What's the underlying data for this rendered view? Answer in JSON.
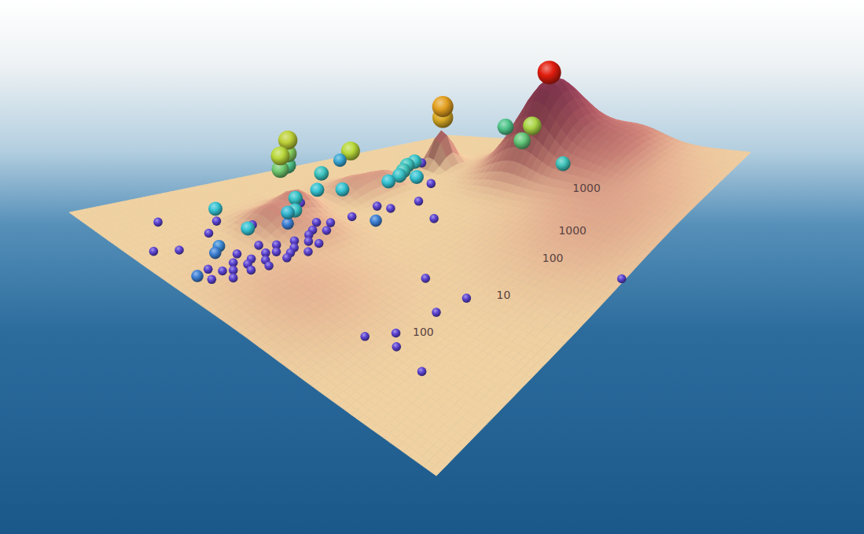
{
  "chart_data": {
    "type": "surface3d",
    "xlim": [
      0,
      100
    ],
    "ylim": [
      0,
      100
    ],
    "zlim": [
      0,
      120
    ],
    "clim": [
      0,
      100
    ],
    "tick_labels": false,
    "grid": false,
    "surface": {
      "peaks": [
        {
          "x": 90,
          "y": 45,
          "height": 100,
          "spread": 7
        },
        {
          "x": 93,
          "y": 62,
          "height": 35,
          "spread": 9
        },
        {
          "x": 80,
          "y": 22,
          "height": 45,
          "spread": 2.2
        },
        {
          "x": 33,
          "y": 22,
          "height": 22,
          "spread": 4
        },
        {
          "x": 42,
          "y": 20,
          "height": 25,
          "spread": 3.5
        },
        {
          "x": 58,
          "y": 20,
          "height": 18,
          "spread": 4
        },
        {
          "x": 65,
          "y": 22,
          "height": 15,
          "spread": 3
        },
        {
          "x": 38,
          "y": 30,
          "height": 12,
          "spread": 5
        },
        {
          "x": 20,
          "y": 45,
          "height": 10,
          "spread": 12
        },
        {
          "x": 75,
          "y": 80,
          "height": 15,
          "spread": 15
        }
      ]
    },
    "contour_labels": [
      {
        "value": 1000,
        "x": 78,
        "y": 70
      },
      {
        "value": 1000,
        "x": 66,
        "y": 78
      },
      {
        "value": 100,
        "x": 58,
        "y": 80
      },
      {
        "value": 10,
        "x": 45,
        "y": 78
      },
      {
        "value": 100,
        "x": 27,
        "y": 72
      }
    ],
    "points": {
      "x": [
        30,
        30,
        34,
        34,
        34,
        34,
        34,
        55,
        53,
        82,
        82,
        90,
        82,
        86,
        84,
        85,
        60,
        63,
        65,
        67,
        69,
        66,
        15,
        22,
        14,
        12,
        5,
        38,
        44,
        47,
        50,
        36,
        50,
        10,
        12,
        14,
        16,
        18,
        20,
        22,
        24,
        26,
        28,
        30,
        32,
        34,
        36,
        38,
        40,
        12,
        17,
        21,
        26,
        31,
        35,
        8,
        28,
        19,
        25,
        41,
        43,
        14,
        10,
        20,
        5,
        25,
        30,
        45,
        48,
        55,
        56,
        18,
        23,
        20,
        18,
        33,
        40,
        40,
        60,
        58,
        78,
        62,
        70
      ],
      "y": [
        28,
        28,
        26,
        26,
        26,
        26,
        26,
        22,
        21,
        20,
        20,
        45,
        40,
        44,
        43,
        55,
        28,
        28,
        27,
        26,
        26,
        30,
        25,
        27,
        27,
        28,
        30,
        24,
        24,
        22,
        25,
        26,
        35,
        28,
        30,
        31,
        29,
        31,
        30,
        32,
        30,
        31,
        33,
        32,
        30,
        32,
        30,
        29,
        31,
        33,
        33,
        34,
        34,
        35,
        34,
        31,
        29,
        27,
        27,
        27,
        29,
        10,
        20,
        18,
        18,
        15,
        20,
        18,
        30,
        30,
        33,
        64,
        68,
        71,
        80,
        70,
        72,
        60,
        99,
        44,
        18,
        35,
        30
      ],
      "z": [
        110,
        93,
        118,
        101,
        86,
        26,
        12,
        60,
        50,
        70,
        56,
        114,
        60,
        55,
        40,
        17,
        22,
        24,
        25,
        27,
        28,
        19,
        62,
        30,
        22,
        20,
        10,
        33,
        33,
        45,
        25,
        25,
        3,
        3,
        3,
        3,
        3,
        3,
        3,
        3,
        3,
        3,
        3,
        3,
        3,
        3,
        3,
        3,
        3,
        3,
        3,
        3,
        3,
        3,
        3,
        3,
        3,
        3,
        3,
        3,
        3,
        3,
        3,
        3,
        3,
        3,
        3,
        3,
        3,
        3,
        3,
        3,
        3,
        3,
        3,
        3,
        3,
        3,
        3,
        3,
        3,
        3,
        3
      ],
      "values": [
        70,
        60,
        72,
        63,
        55,
        38,
        28,
        70,
        35,
        85,
        82,
        100,
        55,
        68,
        58,
        45,
        40,
        42,
        45,
        44,
        42,
        40,
        40,
        40,
        30,
        28,
        28,
        42,
        40,
        44,
        40,
        42,
        28,
        8,
        8,
        8,
        8,
        8,
        8,
        8,
        8,
        8,
        8,
        8,
        8,
        8,
        8,
        8,
        8,
        8,
        8,
        8,
        8,
        8,
        8,
        8,
        8,
        8,
        8,
        8,
        8,
        8,
        8,
        8,
        8,
        8,
        8,
        8,
        8,
        8,
        8,
        8,
        8,
        8,
        8,
        8,
        8,
        8,
        8,
        8,
        8,
        8,
        8
      ]
    }
  }
}
